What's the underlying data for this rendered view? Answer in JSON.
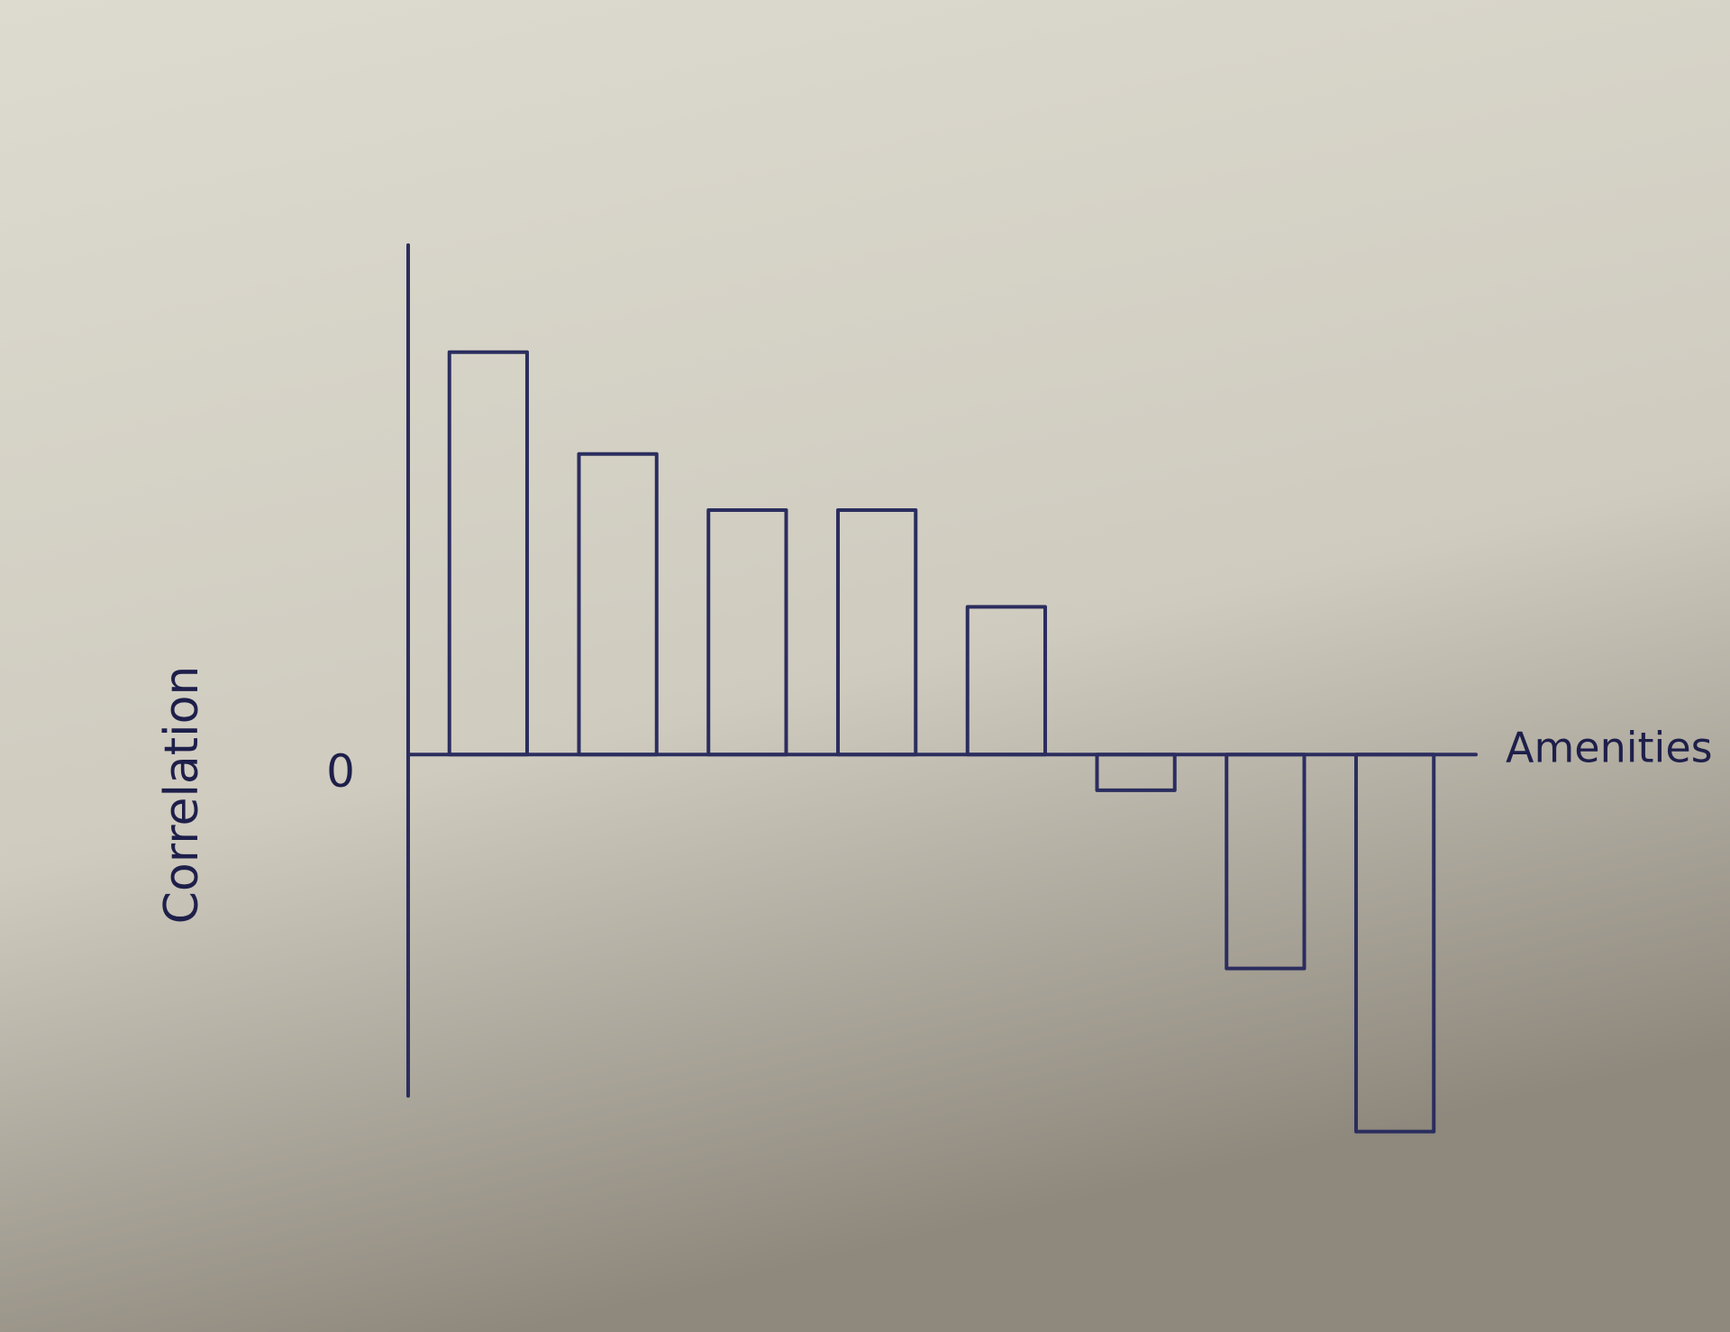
{
  "chart_data": {
    "type": "bar",
    "xlabel": "Amenities",
    "ylabel": "Correlation",
    "categories": [
      null,
      null,
      null,
      null,
      null,
      null,
      null,
      null
    ],
    "values": [
      0.79,
      0.59,
      0.48,
      0.48,
      0.29,
      -0.07,
      -0.42,
      -0.74
    ],
    "color": "#2b2d5e",
    "ylim": [
      -0.67,
      1
    ],
    "yticks": [
      0
    ],
    "grid": false
  }
}
